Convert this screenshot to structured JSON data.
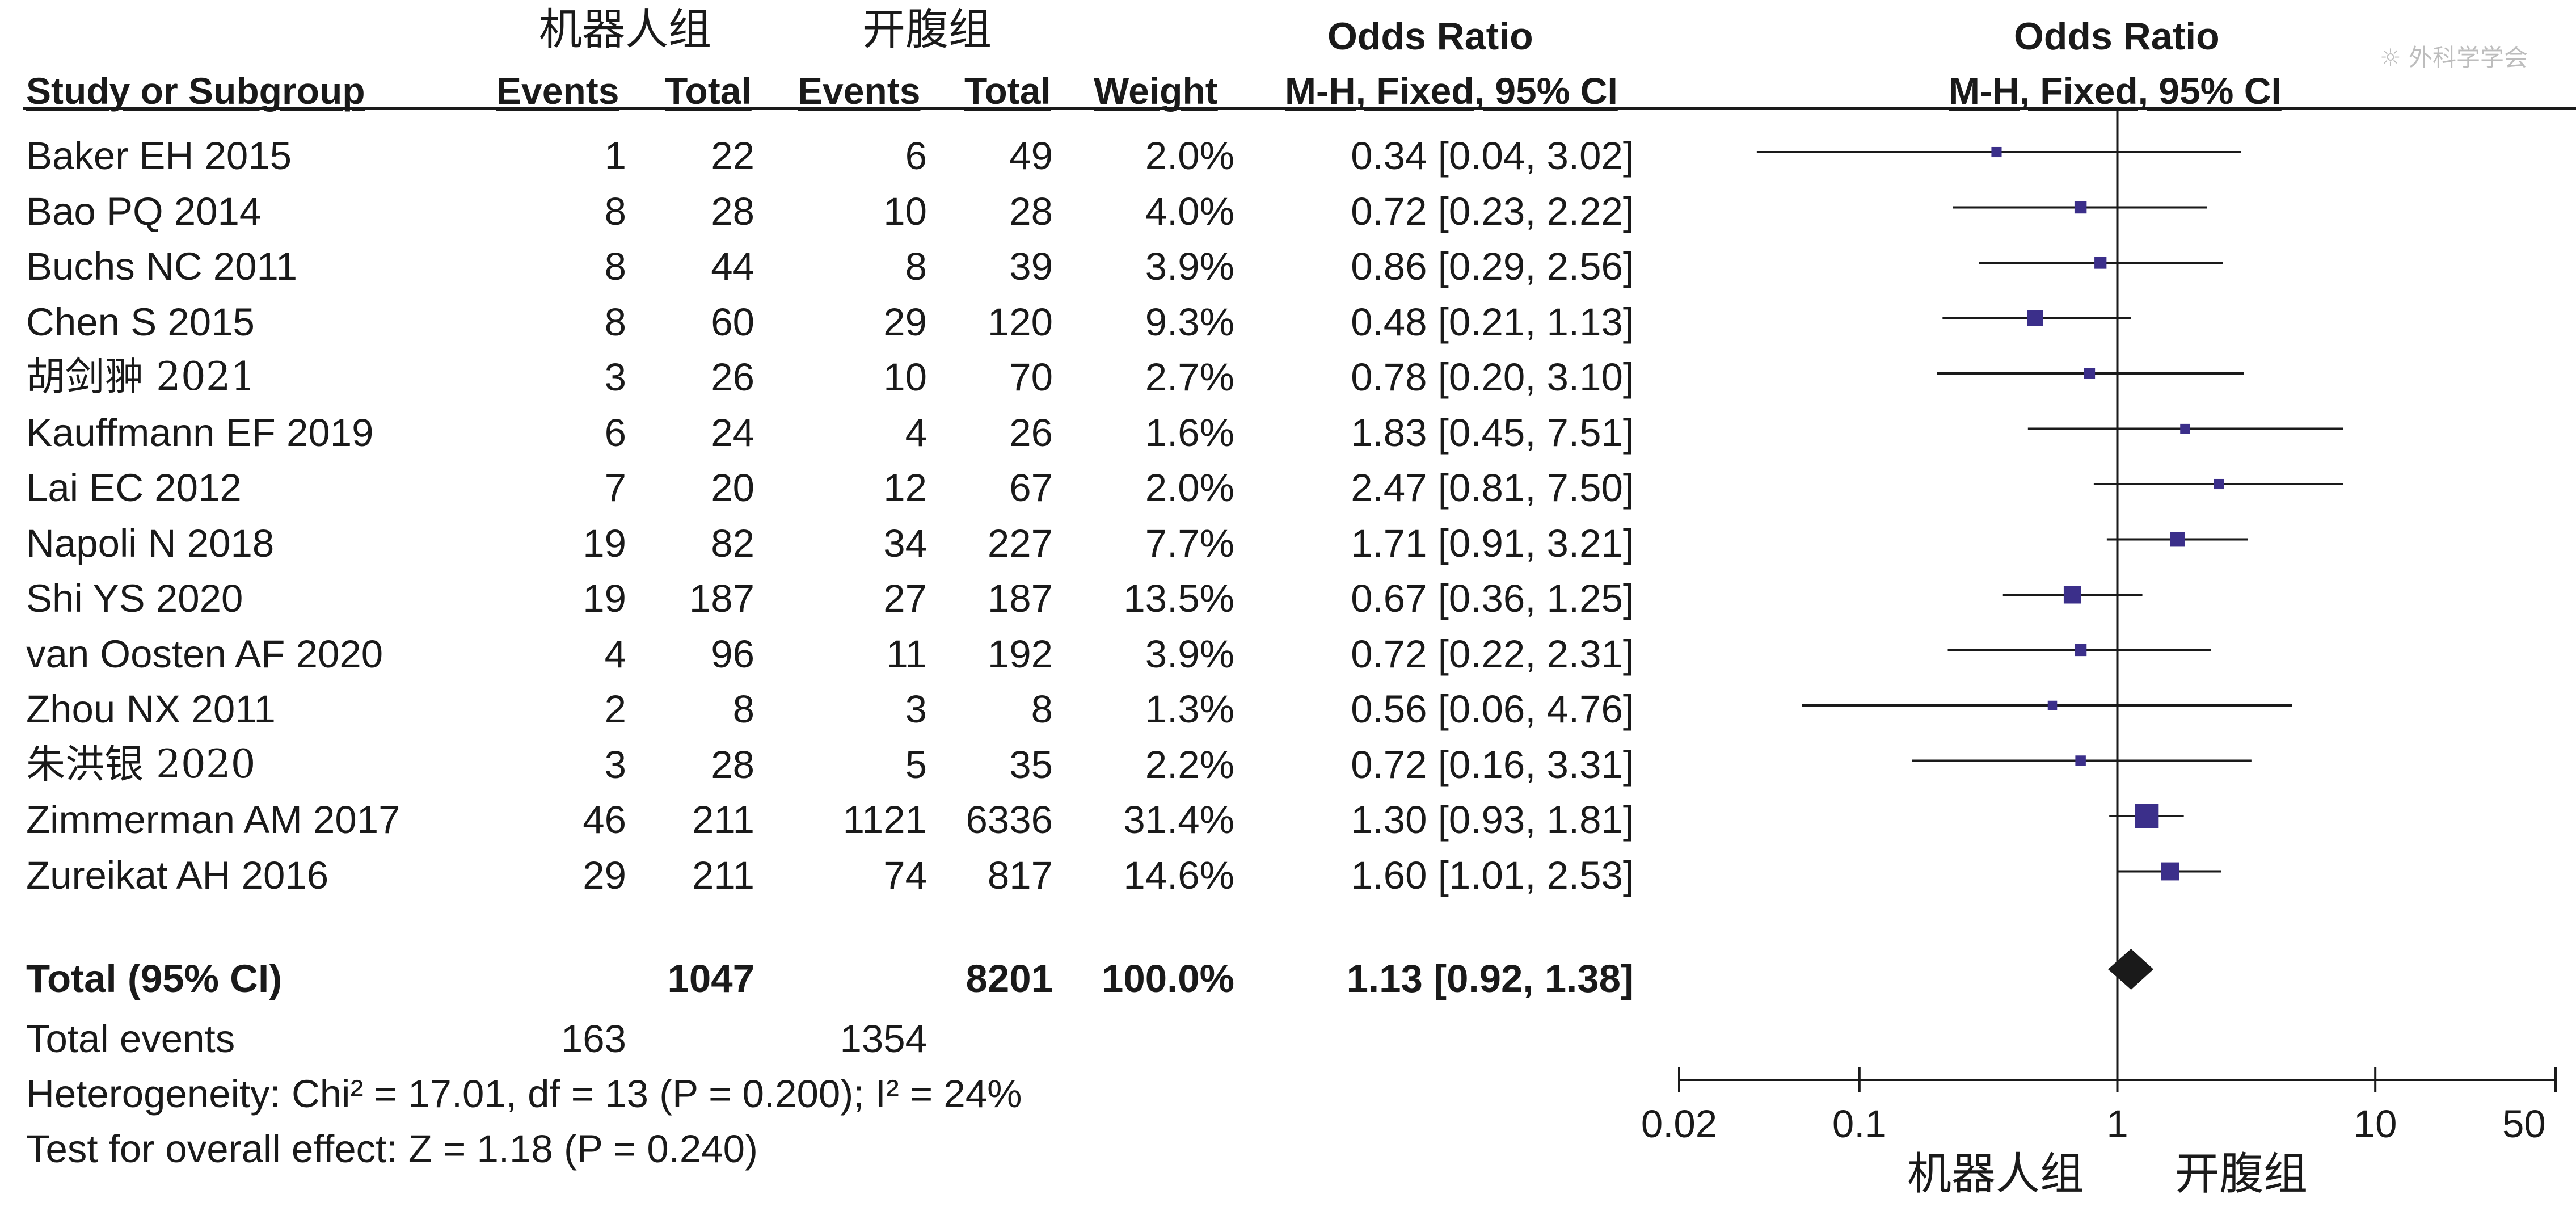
{
  "header": {
    "group1_name": "机器人组",
    "group2_name": "开腹组",
    "col_study": "Study or Subgroup",
    "col_events1": "Events",
    "col_total1": "Total",
    "col_events2": "Events",
    "col_total2": "Total",
    "col_weight": "Weight",
    "or_title": "Odds Ratio",
    "or_method": "M-H, Fixed, 95% CI",
    "plot_title": "Odds Ratio",
    "plot_method": "M-H, Fixed, 95% CI"
  },
  "watermark": "☼ 外科学学会",
  "studies": [
    {
      "name": "Baker EH 2015",
      "events1": "1",
      "total1": "22",
      "events2": "6",
      "total2": "49",
      "weight": "2.0%",
      "ci_text": "0.34 [0.04, 3.02]"
    },
    {
      "name": "Bao PQ 2014",
      "events1": "8",
      "total1": "28",
      "events2": "10",
      "total2": "28",
      "weight": "4.0%",
      "ci_text": "0.72 [0.23, 2.22]"
    },
    {
      "name": "Buchs NC 2011",
      "events1": "8",
      "total1": "44",
      "events2": "8",
      "total2": "39",
      "weight": "3.9%",
      "ci_text": "0.86 [0.29, 2.56]"
    },
    {
      "name": "Chen S 2015",
      "events1": "8",
      "total1": "60",
      "events2": "29",
      "total2": "120",
      "weight": "9.3%",
      "ci_text": "0.48 [0.21, 1.13]"
    },
    {
      "name": "胡剑翀 2021",
      "events1": "3",
      "total1": "26",
      "events2": "10",
      "total2": "70",
      "weight": "2.7%",
      "ci_text": "0.78 [0.20, 3.10]"
    },
    {
      "name": "Kauffmann EF 2019",
      "events1": "6",
      "total1": "24",
      "events2": "4",
      "total2": "26",
      "weight": "1.6%",
      "ci_text": "1.83 [0.45, 7.51]"
    },
    {
      "name": "Lai EC 2012",
      "events1": "7",
      "total1": "20",
      "events2": "12",
      "total2": "67",
      "weight": "2.0%",
      "ci_text": "2.47 [0.81, 7.50]"
    },
    {
      "name": "Napoli N 2018",
      "events1": "19",
      "total1": "82",
      "events2": "34",
      "total2": "227",
      "weight": "7.7%",
      "ci_text": "1.71 [0.91, 3.21]"
    },
    {
      "name": "Shi YS 2020",
      "events1": "19",
      "total1": "187",
      "events2": "27",
      "total2": "187",
      "weight": "13.5%",
      "ci_text": "0.67 [0.36, 1.25]"
    },
    {
      "name": "van Oosten AF 2020",
      "events1": "4",
      "total1": "96",
      "events2": "11",
      "total2": "192",
      "weight": "3.9%",
      "ci_text": "0.72 [0.22, 2.31]"
    },
    {
      "name": "Zhou NX 2011",
      "events1": "2",
      "total1": "8",
      "events2": "3",
      "total2": "8",
      "weight": "1.3%",
      "ci_text": "0.56 [0.06, 4.76]"
    },
    {
      "name": "朱洪银 2020",
      "events1": "3",
      "total1": "28",
      "events2": "5",
      "total2": "35",
      "weight": "2.2%",
      "ci_text": "0.72 [0.16, 3.31]"
    },
    {
      "name": "Zimmerman AM 2017",
      "events1": "46",
      "total1": "211",
      "events2": "1121",
      "total2": "6336",
      "weight": "31.4%",
      "ci_text": "1.30 [0.93, 1.81]"
    },
    {
      "name": "Zureikat AH 2016",
      "events1": "29",
      "total1": "211",
      "events2": "74",
      "total2": "817",
      "weight": "14.6%",
      "ci_text": "1.60 [1.01, 2.53]"
    }
  ],
  "total": {
    "label": "Total (95% CI)",
    "total1": "1047",
    "total2": "8201",
    "weight": "100.0%",
    "ci_text": "1.13 [0.92, 1.38]",
    "events_label": "Total events",
    "events1": "163",
    "events2": "1354"
  },
  "footer": {
    "heterogeneity": "Heterogeneity: Chi² = 17.01, df = 13 (P = 0.200); I² = 24%",
    "overall": "Test for overall effect: Z = 1.18 (P = 0.240)"
  },
  "axis": {
    "tick_labels": [
      "0.02",
      "0.1",
      "1",
      "10",
      "50"
    ],
    "favours_left": "机器人组",
    "favours_right": "开腹组"
  },
  "chart_data": {
    "type": "forest",
    "scale": "log",
    "xlim": [
      0.02,
      50
    ],
    "ticks": [
      0.02,
      0.1,
      1,
      10,
      50
    ],
    "null_line": 1,
    "points": [
      {
        "study": "Baker EH 2015",
        "or": 0.34,
        "lo": 0.04,
        "hi": 3.02,
        "weight": 2.0
      },
      {
        "study": "Bao PQ 2014",
        "or": 0.72,
        "lo": 0.23,
        "hi": 2.22,
        "weight": 4.0
      },
      {
        "study": "Buchs NC 2011",
        "or": 0.86,
        "lo": 0.29,
        "hi": 2.56,
        "weight": 3.9
      },
      {
        "study": "Chen S 2015",
        "or": 0.48,
        "lo": 0.21,
        "hi": 1.13,
        "weight": 9.3
      },
      {
        "study": "胡剑翀 2021",
        "or": 0.78,
        "lo": 0.2,
        "hi": 3.1,
        "weight": 2.7
      },
      {
        "study": "Kauffmann EF 2019",
        "or": 1.83,
        "lo": 0.45,
        "hi": 7.51,
        "weight": 1.6
      },
      {
        "study": "Lai EC 2012",
        "or": 2.47,
        "lo": 0.81,
        "hi": 7.5,
        "weight": 2.0
      },
      {
        "study": "Napoli N 2018",
        "or": 1.71,
        "lo": 0.91,
        "hi": 3.21,
        "weight": 7.7
      },
      {
        "study": "Shi YS 2020",
        "or": 0.67,
        "lo": 0.36,
        "hi": 1.25,
        "weight": 13.5
      },
      {
        "study": "van Oosten AF 2020",
        "or": 0.72,
        "lo": 0.22,
        "hi": 2.31,
        "weight": 3.9
      },
      {
        "study": "Zhou NX 2011",
        "or": 0.56,
        "lo": 0.06,
        "hi": 4.76,
        "weight": 1.3
      },
      {
        "study": "朱洪银 2020",
        "or": 0.72,
        "lo": 0.16,
        "hi": 3.31,
        "weight": 2.2
      },
      {
        "study": "Zimmerman AM 2017",
        "or": 1.3,
        "lo": 0.93,
        "hi": 1.81,
        "weight": 31.4
      },
      {
        "study": "Zureikat AH 2016",
        "or": 1.6,
        "lo": 1.01,
        "hi": 2.53,
        "weight": 14.6
      }
    ],
    "pooled": {
      "or": 1.13,
      "lo": 0.92,
      "hi": 1.38
    },
    "colors": {
      "marker": "#3b2f8a",
      "line": "#1a1a1a",
      "diamond": "#1a1a1a"
    }
  }
}
